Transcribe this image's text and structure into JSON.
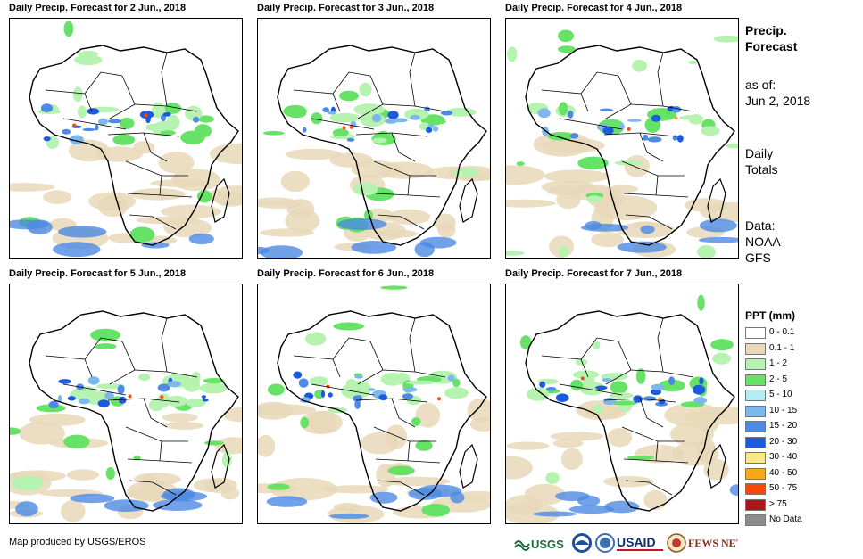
{
  "panels": [
    {
      "title": "Daily Precip. Forecast for 2 Jun., 2018"
    },
    {
      "title": "Daily Precip. Forecast for 3 Jun., 2018"
    },
    {
      "title": "Daily Precip. Forecast for 4 Jun., 2018"
    },
    {
      "title": "Daily Precip. Forecast for 5 Jun., 2018"
    },
    {
      "title": "Daily Precip. Forecast for 6 Jun., 2018"
    },
    {
      "title": "Daily Precip. Forecast for 7 Jun., 2018"
    }
  ],
  "side": {
    "heading_line1": "Precip.",
    "heading_line2": "Forecast",
    "asof_line1": "as of:",
    "asof_line2": "Jun 2, 2018",
    "totals_line1": "Daily",
    "totals_line2": "Totals",
    "data_line1": "Data:",
    "data_line2": "NOAA-",
    "data_line3": "GFS"
  },
  "legend": {
    "title": "PPT (mm)",
    "items": [
      {
        "label": "0 - 0.1",
        "color": "#ffffff"
      },
      {
        "label": "0.1 - 1",
        "color": "#e8d8b8"
      },
      {
        "label": "1 - 2",
        "color": "#b6f2b0"
      },
      {
        "label": "2 - 5",
        "color": "#66e266"
      },
      {
        "label": "5 - 10",
        "color": "#b4ecf4"
      },
      {
        "label": "10 - 15",
        "color": "#7cb8ec"
      },
      {
        "label": "15 - 20",
        "color": "#4c8ae4"
      },
      {
        "label": "20 - 30",
        "color": "#1c5ae0"
      },
      {
        "label": "30 - 40",
        "color": "#f8e888"
      },
      {
        "label": "40 - 50",
        "color": "#f8a818"
      },
      {
        "label": "50 - 75",
        "color": "#f84808"
      },
      {
        "label": "> 75",
        "color": "#a81818"
      },
      {
        "label": "No Data",
        "color": "#8c8c8c"
      }
    ]
  },
  "credit": "Map produced by USGS/EROS",
  "logos": {
    "usgs": "USGS",
    "usaid": "USAID",
    "fews": "FEWS NET"
  }
}
